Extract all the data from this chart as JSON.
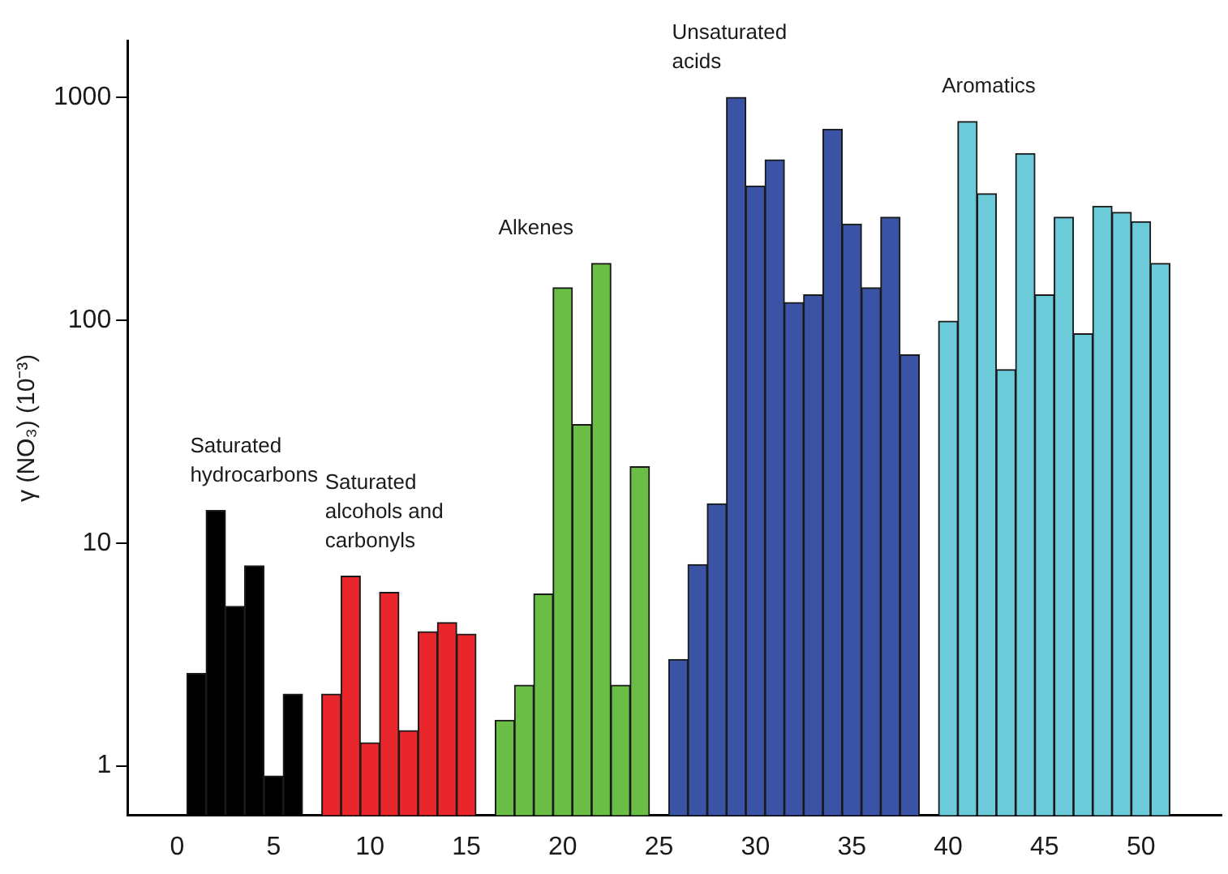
{
  "chart_data": {
    "type": "bar",
    "ylabel": "γ (NO₃) (10⁻³)",
    "log": "y",
    "xlim": [
      0,
      51.6
    ],
    "xticks": [
      0,
      5,
      10,
      15,
      20,
      25,
      30,
      35,
      40,
      45,
      50
    ],
    "ylim": [
      0.62,
      1800
    ],
    "yticks": [
      1,
      10,
      100,
      1000
    ],
    "grid": false,
    "legend": false,
    "series": [
      {
        "name": "Saturated hydrocarbons",
        "color": "#000000",
        "x": [
          1,
          2,
          3,
          4,
          5,
          6
        ],
        "values": [
          2.6,
          14,
          5.2,
          7.9,
          0.9,
          2.1
        ]
      },
      {
        "name": "Saturated alcohols and carbonyls",
        "color": "#e8262b",
        "x": [
          8,
          9,
          10,
          11,
          12,
          13,
          14,
          15
        ],
        "values": [
          2.1,
          7.1,
          1.27,
          6.0,
          1.44,
          4.0,
          4.4,
          3.9
        ]
      },
      {
        "name": "Alkenes",
        "color": "#6abd45",
        "x": [
          17,
          18,
          19,
          20,
          21,
          22,
          23,
          24
        ],
        "values": [
          1.6,
          2.3,
          5.9,
          140,
          34,
          180,
          2.3,
          22
        ]
      },
      {
        "name": "Unsaturated acids",
        "color": "#3a53a4",
        "x": [
          26,
          27,
          28,
          29,
          30,
          31,
          32,
          33,
          34,
          35,
          36,
          37,
          38
        ],
        "values": [
          3.0,
          8.0,
          15,
          1000,
          400,
          525,
          120,
          130,
          720,
          270,
          140,
          290,
          70
        ]
      },
      {
        "name": "Aromatics",
        "color": "#6ccbd8",
        "x": [
          40,
          41,
          42,
          43,
          44,
          45,
          46,
          47,
          48,
          49,
          50,
          51
        ],
        "values": [
          99,
          780,
          370,
          60,
          560,
          130,
          290,
          87,
          325,
          305,
          277,
          180
        ]
      }
    ]
  }
}
